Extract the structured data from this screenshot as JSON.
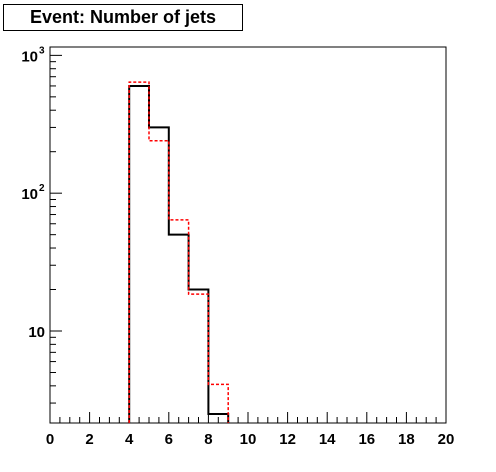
{
  "header": {
    "title": "Event: Number of jets"
  },
  "chart_data": {
    "type": "histogram",
    "title": "Event: Number of jets",
    "xlabel": "",
    "ylabel": "",
    "xlim": [
      0,
      20
    ],
    "ylim": [
      2.15,
      1150
    ],
    "yscale": "log",
    "x_tick_labels": [
      "0",
      "2",
      "4",
      "6",
      "8",
      "10",
      "12",
      "14",
      "16",
      "18",
      "20"
    ],
    "y_tick_labels": [
      {
        "base": "10",
        "exp": "",
        "value": 10
      },
      {
        "base": "10",
        "exp": "2",
        "value": 100
      },
      {
        "base": "10",
        "exp": "3",
        "value": 1000
      }
    ],
    "bin_edges": [
      4,
      5,
      6,
      7,
      8,
      9
    ],
    "series": [
      {
        "style": "solid",
        "color": "#000000",
        "values": [
          600,
          300,
          50,
          20,
          2.5
        ]
      },
      {
        "style": "dashed",
        "color": "#ff0000",
        "values": [
          640,
          240,
          64,
          18.5,
          4.1
        ]
      }
    ]
  }
}
